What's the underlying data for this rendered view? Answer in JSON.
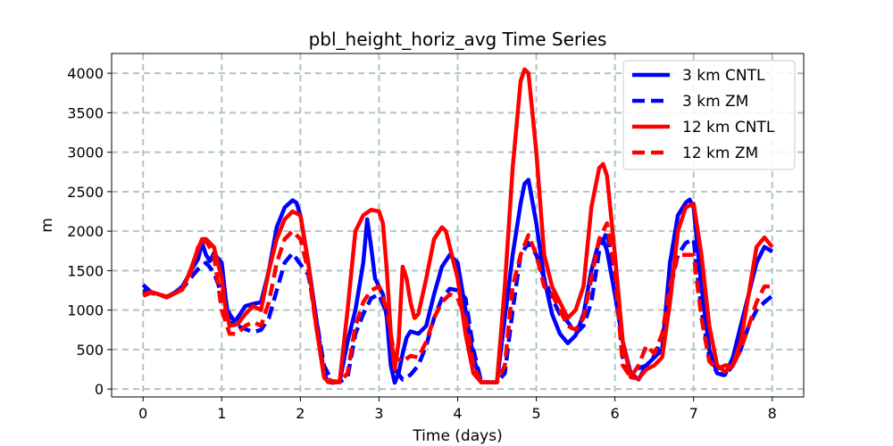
{
  "chart_data": {
    "type": "line",
    "title": "pbl_height_horiz_avg Time Series",
    "xlabel": "Time (days)",
    "ylabel": "m",
    "xlim": [
      -0.4,
      8.4
    ],
    "ylim": [
      -100,
      4250
    ],
    "xticks": [
      0,
      1,
      2,
      3,
      4,
      5,
      6,
      7,
      8
    ],
    "yticks": [
      0,
      500,
      1000,
      1500,
      2000,
      2500,
      3000,
      3500,
      4000
    ],
    "grid": true,
    "legend_position": "top-right",
    "series": [
      {
        "name": "3 km CNTL",
        "color": "#0000ff",
        "style": "solid",
        "x": [
          0,
          0.1,
          0.2,
          0.3,
          0.4,
          0.5,
          0.6,
          0.7,
          0.75,
          0.8,
          0.85,
          0.9,
          1.0,
          1.05,
          1.1,
          1.2,
          1.3,
          1.4,
          1.5,
          1.6,
          1.7,
          1.8,
          1.9,
          1.95,
          2.0,
          2.1,
          2.2,
          2.3,
          2.35,
          2.4,
          2.5,
          2.6,
          2.7,
          2.8,
          2.85,
          2.9,
          2.95,
          3.0,
          3.05,
          3.1,
          3.15,
          3.2,
          3.25,
          3.3,
          3.35,
          3.4,
          3.5,
          3.6,
          3.7,
          3.8,
          3.9,
          4.0,
          4.1,
          4.2,
          4.3,
          4.4,
          4.5,
          4.6,
          4.7,
          4.8,
          4.85,
          4.9,
          5.0,
          5.1,
          5.2,
          5.3,
          5.4,
          5.5,
          5.6,
          5.7,
          5.8,
          5.85,
          5.9,
          6.0,
          6.1,
          6.2,
          6.3,
          6.4,
          6.5,
          6.6,
          6.7,
          6.8,
          6.9,
          6.95,
          7.0,
          7.1,
          7.2,
          7.3,
          7.4,
          7.5,
          7.6,
          7.7,
          7.8,
          7.9,
          8.0
        ],
        "values": [
          1320,
          1230,
          1200,
          1170,
          1220,
          1300,
          1480,
          1650,
          1850,
          1700,
          1620,
          1720,
          1600,
          1150,
          800,
          900,
          1050,
          1080,
          1100,
          1500,
          2050,
          2300,
          2390,
          2360,
          2200,
          1600,
          900,
          200,
          90,
          80,
          90,
          600,
          1000,
          1600,
          2150,
          1800,
          1400,
          1300,
          1200,
          900,
          300,
          80,
          200,
          450,
          650,
          730,
          700,
          800,
          1200,
          1550,
          1700,
          1600,
          1000,
          400,
          85,
          85,
          85,
          900,
          1700,
          2350,
          2600,
          2650,
          2100,
          1400,
          950,
          700,
          580,
          680,
          950,
          1500,
          1880,
          1900,
          1750,
          1200,
          600,
          200,
          120,
          300,
          400,
          500,
          1600,
          2200,
          2360,
          2400,
          2300,
          1300,
          500,
          200,
          180,
          400,
          800,
          1200,
          1600,
          1800,
          1740
        ]
      },
      {
        "name": "3 km ZM",
        "color": "#0000ff",
        "style": "dashed",
        "x": [
          0,
          0.1,
          0.2,
          0.3,
          0.4,
          0.5,
          0.6,
          0.7,
          0.8,
          0.9,
          1.0,
          1.1,
          1.2,
          1.3,
          1.4,
          1.5,
          1.6,
          1.7,
          1.8,
          1.9,
          2.0,
          2.1,
          2.2,
          2.3,
          2.4,
          2.5,
          2.6,
          2.7,
          2.8,
          2.9,
          3.0,
          3.1,
          3.2,
          3.3,
          3.4,
          3.5,
          3.6,
          3.7,
          3.8,
          3.9,
          4.0,
          4.1,
          4.2,
          4.3,
          4.4,
          4.5,
          4.6,
          4.7,
          4.8,
          4.9,
          5.0,
          5.1,
          5.2,
          5.3,
          5.4,
          5.5,
          5.6,
          5.7,
          5.8,
          5.9,
          6.0,
          6.1,
          6.2,
          6.3,
          6.4,
          6.5,
          6.6,
          6.7,
          6.8,
          6.9,
          7.0,
          7.1,
          7.2,
          7.3,
          7.4,
          7.5,
          7.6,
          7.7,
          7.8,
          7.9,
          8.0
        ],
        "values": [
          1250,
          1220,
          1190,
          1170,
          1210,
          1270,
          1400,
          1520,
          1600,
          1480,
          1200,
          950,
          800,
          760,
          720,
          750,
          900,
          1250,
          1600,
          1720,
          1580,
          1450,
          900,
          300,
          100,
          90,
          150,
          700,
          950,
          1150,
          1200,
          950,
          250,
          120,
          180,
          300,
          550,
          900,
          1150,
          1270,
          1250,
          1150,
          500,
          90,
          85,
          85,
          200,
          1000,
          1700,
          1850,
          1700,
          1400,
          1150,
          950,
          850,
          700,
          800,
          1100,
          1750,
          2000,
          1400,
          400,
          200,
          260,
          300,
          420,
          650,
          1250,
          1700,
          1850,
          1900,
          1000,
          400,
          200,
          170,
          300,
          500,
          800,
          1000,
          1100,
          1180
        ]
      },
      {
        "name": "12 km CNTL",
        "color": "#ff0000",
        "style": "solid",
        "x": [
          0,
          0.1,
          0.2,
          0.3,
          0.4,
          0.5,
          0.6,
          0.7,
          0.75,
          0.8,
          0.9,
          1.0,
          1.05,
          1.1,
          1.2,
          1.3,
          1.4,
          1.5,
          1.6,
          1.7,
          1.8,
          1.9,
          2.0,
          2.1,
          2.2,
          2.3,
          2.35,
          2.4,
          2.5,
          2.6,
          2.7,
          2.8,
          2.9,
          3.0,
          3.05,
          3.1,
          3.15,
          3.2,
          3.25,
          3.3,
          3.35,
          3.4,
          3.45,
          3.5,
          3.6,
          3.7,
          3.8,
          3.85,
          3.9,
          4.0,
          4.1,
          4.2,
          4.3,
          4.4,
          4.5,
          4.6,
          4.7,
          4.8,
          4.85,
          4.9,
          5.0,
          5.1,
          5.2,
          5.3,
          5.4,
          5.5,
          5.6,
          5.7,
          5.8,
          5.85,
          5.9,
          6.0,
          6.1,
          6.2,
          6.3,
          6.4,
          6.5,
          6.6,
          6.7,
          6.8,
          6.9,
          7.0,
          7.1,
          7.2,
          7.3,
          7.4,
          7.5,
          7.6,
          7.7,
          7.8,
          7.9,
          8.0
        ],
        "values": [
          1200,
          1230,
          1200,
          1160,
          1210,
          1260,
          1500,
          1780,
          1900,
          1900,
          1800,
          1400,
          1000,
          800,
          820,
          950,
          1050,
          1000,
          1500,
          1900,
          2150,
          2250,
          2200,
          1600,
          800,
          150,
          90,
          85,
          100,
          1000,
          2000,
          2200,
          2270,
          2250,
          2100,
          1500,
          700,
          250,
          600,
          1550,
          1400,
          1100,
          900,
          950,
          1400,
          1900,
          2050,
          2000,
          1800,
          1400,
          700,
          200,
          85,
          85,
          85,
          1300,
          2800,
          3900,
          4050,
          4000,
          3000,
          1700,
          1300,
          1100,
          900,
          1000,
          1300,
          2300,
          2800,
          2850,
          2700,
          1700,
          600,
          150,
          130,
          250,
          300,
          400,
          1100,
          2000,
          2300,
          2350,
          1700,
          800,
          300,
          220,
          300,
          600,
          1200,
          1800,
          1920,
          1800
        ]
      },
      {
        "name": "12 km ZM",
        "color": "#ff0000",
        "style": "dashed",
        "x": [
          0,
          0.1,
          0.2,
          0.3,
          0.4,
          0.5,
          0.6,
          0.7,
          0.8,
          0.9,
          1.0,
          1.1,
          1.2,
          1.3,
          1.4,
          1.5,
          1.6,
          1.7,
          1.8,
          1.9,
          2.0,
          2.1,
          2.2,
          2.3,
          2.4,
          2.5,
          2.6,
          2.7,
          2.8,
          2.9,
          3.0,
          3.1,
          3.2,
          3.3,
          3.4,
          3.5,
          3.6,
          3.7,
          3.8,
          3.9,
          4.0,
          4.1,
          4.2,
          4.3,
          4.4,
          4.5,
          4.6,
          4.7,
          4.8,
          4.9,
          5.0,
          5.1,
          5.2,
          5.3,
          5.4,
          5.5,
          5.6,
          5.7,
          5.8,
          5.9,
          6.0,
          6.1,
          6.2,
          6.3,
          6.4,
          6.5,
          6.6,
          6.7,
          6.8,
          6.9,
          7.0,
          7.1,
          7.2,
          7.3,
          7.4,
          7.5,
          7.6,
          7.7,
          7.8,
          7.9,
          8.0
        ],
        "values": [
          1180,
          1220,
          1200,
          1170,
          1210,
          1270,
          1450,
          1800,
          1880,
          1700,
          1000,
          700,
          700,
          800,
          850,
          800,
          1100,
          1600,
          1900,
          2000,
          1900,
          1500,
          800,
          200,
          90,
          85,
          200,
          800,
          1100,
          1250,
          1300,
          1000,
          400,
          350,
          420,
          400,
          600,
          900,
          1100,
          1200,
          1150,
          900,
          300,
          85,
          85,
          85,
          300,
          1300,
          1700,
          1950,
          1700,
          1300,
          1200,
          1000,
          800,
          750,
          900,
          1400,
          1900,
          2100,
          1500,
          300,
          150,
          300,
          550,
          450,
          700,
          1300,
          1700,
          1700,
          1700,
          900,
          350,
          250,
          300,
          300,
          500,
          800,
          1100,
          1300,
          1300
        ]
      }
    ]
  }
}
